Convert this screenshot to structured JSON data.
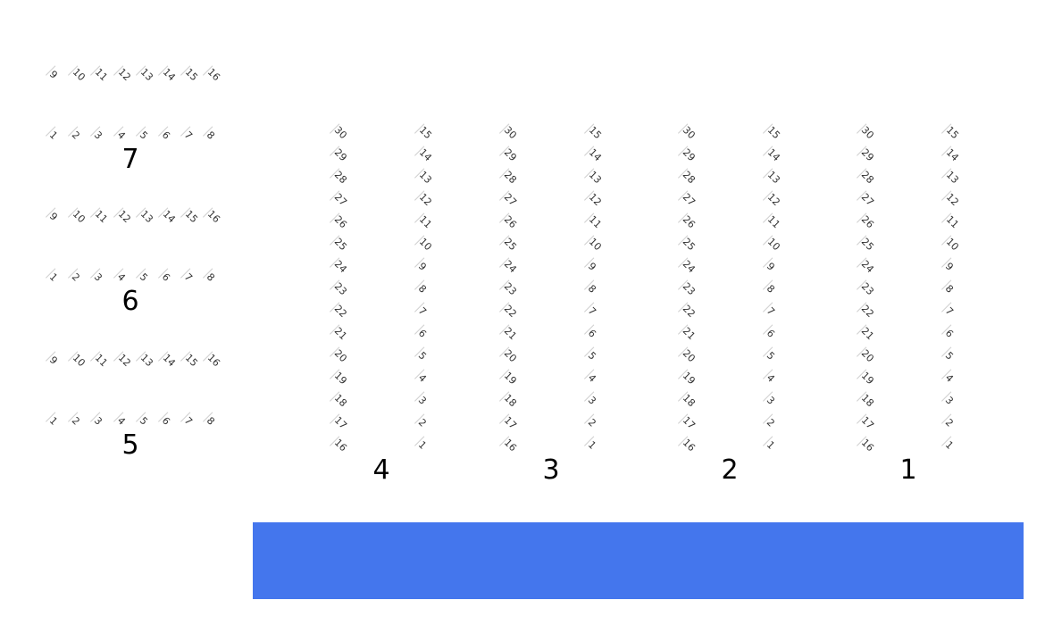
{
  "small_sections": [
    {
      "label": "7",
      "rows": [
        [
          9,
          10,
          11,
          12,
          13,
          14,
          15,
          16
        ],
        [
          1,
          2,
          3,
          4,
          5,
          6,
          7,
          8
        ]
      ]
    },
    {
      "label": "6",
      "rows": [
        [
          9,
          10,
          11,
          12,
          13,
          14,
          15,
          16
        ],
        [
          1,
          2,
          3,
          4,
          5,
          6,
          7,
          8
        ]
      ]
    },
    {
      "label": "5",
      "rows": [
        [
          9,
          10,
          11,
          12,
          13,
          14,
          15,
          16
        ],
        [
          1,
          2,
          3,
          4,
          5,
          6,
          7,
          8
        ]
      ]
    }
  ],
  "large_sections": [
    {
      "label": "4",
      "columns": [
        [
          30,
          29,
          28,
          27,
          26,
          25,
          24,
          23,
          22,
          21,
          20,
          19,
          18,
          17,
          16
        ],
        [
          15,
          14,
          13,
          12,
          11,
          10,
          9,
          8,
          7,
          6,
          5,
          4,
          3,
          2,
          1
        ]
      ]
    },
    {
      "label": "3",
      "columns": [
        [
          30,
          29,
          28,
          27,
          26,
          25,
          24,
          23,
          22,
          21,
          20,
          19,
          18,
          17,
          16
        ],
        [
          15,
          14,
          13,
          12,
          11,
          10,
          9,
          8,
          7,
          6,
          5,
          4,
          3,
          2,
          1
        ]
      ]
    },
    {
      "label": "2",
      "columns": [
        [
          30,
          29,
          28,
          27,
          26,
          25,
          24,
          23,
          22,
          21,
          20,
          19,
          18,
          17,
          16
        ],
        [
          15,
          14,
          13,
          12,
          11,
          10,
          9,
          8,
          7,
          6,
          5,
          4,
          3,
          2,
          1
        ]
      ]
    },
    {
      "label": "1",
      "columns": [
        [
          30,
          29,
          28,
          27,
          26,
          25,
          24,
          23,
          22,
          21,
          20,
          19,
          18,
          17,
          16
        ],
        [
          15,
          14,
          13,
          12,
          11,
          10,
          9,
          8,
          7,
          6,
          5,
          4,
          3,
          2,
          1
        ]
      ]
    }
  ],
  "colors": {
    "stage": "#4476ed",
    "seat_number": "#333333"
  }
}
